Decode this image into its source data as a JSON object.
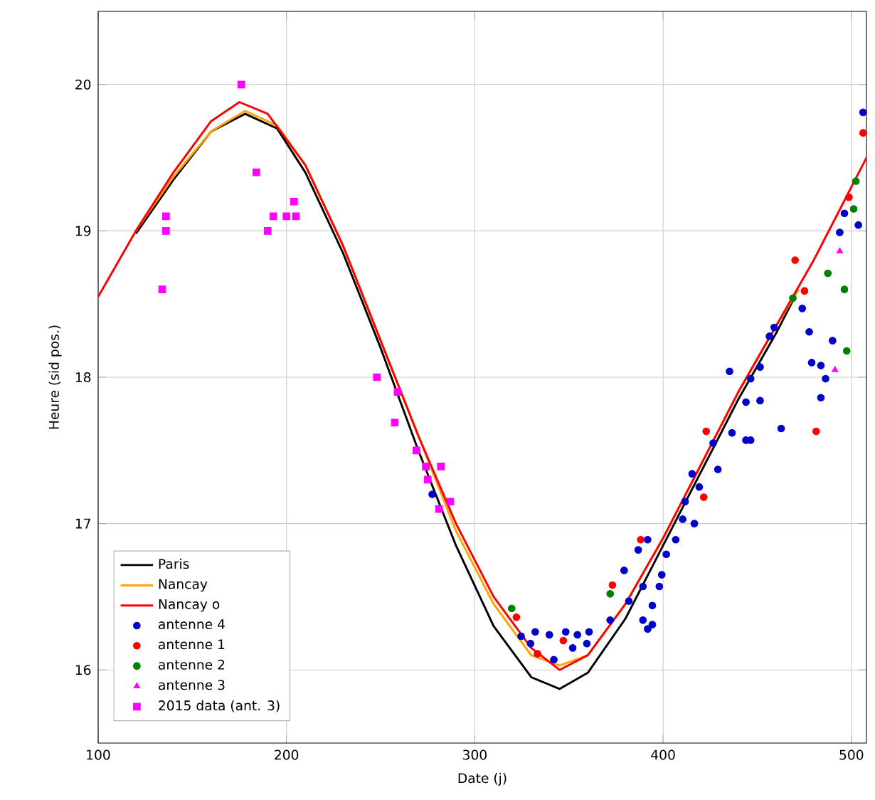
{
  "chart_data": {
    "type": "line",
    "xlabel": "Date (j)",
    "ylabel": "Heure (sid pos.)",
    "xlim": [
      100,
      508
    ],
    "ylim": [
      15.5,
      20.5
    ],
    "xticks": [
      100,
      200,
      300,
      400,
      500
    ],
    "yticks": [
      16,
      17,
      18,
      19,
      20
    ],
    "grid": true,
    "legend": "bottom left",
    "series": [
      {
        "name": "Paris",
        "color": "#000000",
        "x": [
          120,
          140,
          160,
          178,
          195,
          210,
          230,
          250,
          270,
          290,
          310,
          330,
          345,
          360,
          380,
          400,
          420,
          440,
          460,
          470
        ],
        "values": [
          18.98,
          19.35,
          19.68,
          19.8,
          19.7,
          19.4,
          18.85,
          18.2,
          17.5,
          16.85,
          16.3,
          15.95,
          15.87,
          15.98,
          16.35,
          16.85,
          17.35,
          17.85,
          18.3,
          18.55
        ]
      },
      {
        "name": "Nancay",
        "color": "#ffa500",
        "x": [
          120,
          140,
          160,
          178,
          195,
          210,
          230,
          250,
          270,
          290,
          310,
          330,
          345,
          360,
          380,
          400,
          420,
          440,
          460,
          472
        ],
        "values": [
          19.0,
          19.37,
          19.68,
          19.82,
          19.72,
          19.45,
          18.9,
          18.25,
          17.6,
          16.95,
          16.45,
          16.1,
          16.03,
          16.1,
          16.45,
          16.9,
          17.4,
          17.9,
          18.35,
          18.6
        ]
      },
      {
        "name": "Nancay o",
        "color": "#ff0000",
        "x": [
          100,
          120,
          140,
          160,
          175,
          190,
          210,
          230,
          250,
          270,
          290,
          310,
          330,
          345,
          360,
          380,
          400,
          420,
          440,
          460,
          480,
          500,
          508
        ],
        "values": [
          18.55,
          19.0,
          19.4,
          19.75,
          19.88,
          19.8,
          19.45,
          18.9,
          18.25,
          17.6,
          17.0,
          16.5,
          16.15,
          16.0,
          16.1,
          16.45,
          16.9,
          17.4,
          17.9,
          18.35,
          18.8,
          19.3,
          19.5
        ]
      },
      {
        "name": "antenne 4",
        "color": "#0000cc",
        "type": "scatter",
        "marker": "circle",
        "x": [
          277.4,
          332.1,
          329.6,
          339.6,
          348.3,
          354.5,
          360.7,
          359.5,
          352.0,
          342.0,
          334.6,
          324.6,
          371.9,
          379.3,
          386.8,
          391.8,
          389.3,
          381.8,
          389.3,
          394.3,
          399.3,
          398.0,
          401.7,
          406.7,
          410.4,
          416.6,
          411.7,
          419.2,
          415.4,
          426.6,
          429.1,
          436.6,
          444.0,
          446.5,
          444.0,
          451.5,
          462.7,
          483.8,
          394.3,
          391.8,
          435.3,
          446.5,
          451.5,
          456.5,
          459.0,
          473.9,
          477.6,
          478.9,
          483.8,
          490.0,
          493.8,
          503.7,
          506.2,
          496.3,
          486.3
        ],
        "values": [
          17.2,
          16.26,
          16.18,
          16.24,
          16.26,
          16.24,
          16.26,
          16.18,
          16.15,
          16.07,
          null,
          16.23,
          16.34,
          16.68,
          16.82,
          16.89,
          16.57,
          16.47,
          16.34,
          16.44,
          16.65,
          16.57,
          16.79,
          16.89,
          17.03,
          17.0,
          17.15,
          17.25,
          17.34,
          17.55,
          17.37,
          17.62,
          17.57,
          17.57,
          17.83,
          17.84,
          17.65,
          17.86,
          16.31,
          16.28,
          18.04,
          17.99,
          18.07,
          18.28,
          18.34,
          18.47,
          18.31,
          18.1,
          18.08,
          18.25,
          18.99,
          19.04,
          19.81,
          19.12,
          17.99
        ]
      },
      {
        "name": "antenne 1",
        "color": "#ff0000",
        "type": "scatter",
        "marker": "circle",
        "x": [
          322.1,
          347.0,
          333.3,
          373.1,
          388.1,
          421.6,
          422.9,
          481.3,
          470.1,
          475.1,
          498.7,
          506.2
        ],
        "values": [
          16.36,
          16.2,
          16.11,
          16.58,
          16.89,
          17.18,
          17.63,
          17.63,
          18.8,
          18.59,
          19.23,
          19.67
        ]
      },
      {
        "name": "antenne 2",
        "color": "#008000",
        "type": "scatter",
        "marker": "circle",
        "x": [
          319.6,
          371.9,
          468.9,
          487.5,
          496.3,
          497.5,
          501.2,
          502.4
        ],
        "values": [
          16.42,
          16.52,
          18.54,
          18.71,
          18.6,
          18.18,
          19.15,
          19.34
        ]
      },
      {
        "name": "antenne 3",
        "color": "#ff00ff",
        "type": "scatter",
        "marker": "triangle",
        "x": [
          493.8,
          491.3
        ],
        "values": [
          18.86,
          18.05
        ]
      },
      {
        "name": "2015 data (ant. 3)",
        "color": "#ff00ff",
        "type": "scatter",
        "marker": "square",
        "x": [
          176,
          184,
          136,
          136,
          134,
          190,
          193,
          200,
          205,
          204,
          248,
          259,
          257.5,
          269,
          274,
          282,
          275,
          281,
          287
        ],
        "values": [
          20.0,
          19.4,
          19.1,
          19.0,
          18.6,
          19.0,
          19.1,
          19.1,
          19.1,
          19.2,
          18.0,
          17.9,
          17.69,
          17.5,
          17.39,
          17.39,
          17.3,
          17.1,
          17.15
        ]
      }
    ]
  }
}
